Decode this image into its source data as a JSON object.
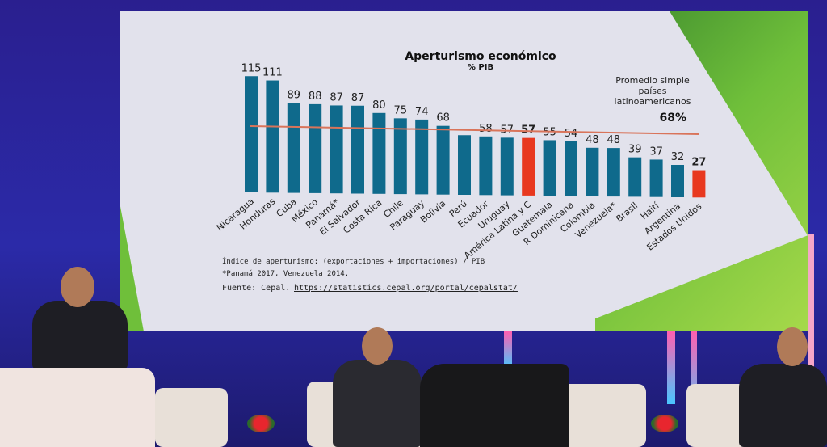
{
  "chart_data": {
    "type": "bar",
    "title": "Aperturismo económico",
    "subtitle": "% PIB",
    "categories": [
      "Nicaragua",
      "Honduras",
      "Cuba",
      "México",
      "Panamá*",
      "El Salvador",
      "Costa Rica",
      "Chile",
      "Paraguay",
      "Bolivia",
      "Perú",
      "Ecuador",
      "Uruguay",
      "América Latina y C",
      "Guatemala",
      "R Dominicana",
      "Colombia",
      "Venezuela*",
      "Brasil",
      "Haití",
      "Argentina",
      "Estados Unidos"
    ],
    "values": [
      115,
      111,
      89,
      88,
      87,
      87,
      80,
      75,
      74,
      68,
      59,
      58,
      57,
      57,
      55,
      54,
      48,
      48,
      39,
      37,
      32,
      27
    ],
    "value_labels": [
      "115",
      "111",
      "89",
      "88",
      "87",
      "87",
      "80",
      "75",
      "74",
      "68",
      "",
      "58",
      "57",
      "57",
      "55",
      "54",
      "48",
      "48",
      "39",
      "37",
      "32",
      "27"
    ],
    "highlighted": [
      "América Latina y C",
      "Estados Unidos"
    ],
    "colors": {
      "bar": "#0f6a8c",
      "highlight": "#e8381f",
      "average_line": "#d9745a"
    },
    "average": {
      "value": 68,
      "label_lines": [
        "Promedio simple",
        "países",
        "latinoamericanos"
      ],
      "value_label": "68%"
    },
    "notes": [
      "Índice de aperturismo: (exportaciones + importaciones) / PIB",
      "*Panamá 2017, Venezuela 2014."
    ],
    "source": {
      "prefix": "Fuente: Cepal.",
      "link": "https://statistics.cepal.org/portal/cepalstat/"
    },
    "xlabel": "",
    "ylabel": "",
    "ylim": [
      0,
      120
    ],
    "grid": false
  }
}
